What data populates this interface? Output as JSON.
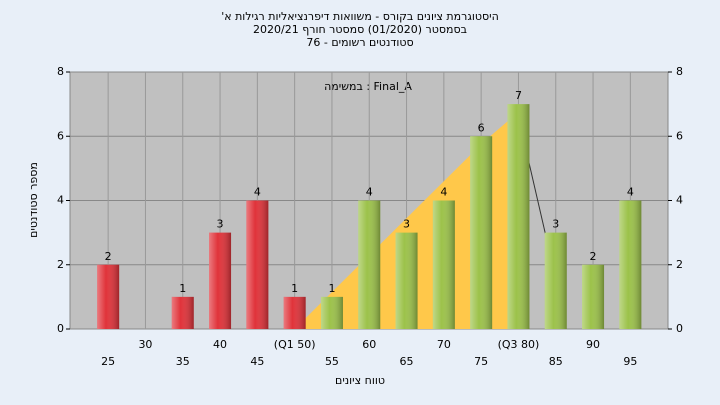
{
  "chart_data": {
    "type": "bar",
    "title": [
      "היסטוגרמת ציונים בקורס - משוואות דיפרנציאליות רגילות א'",
      "בסמסטר (01/2020) סמסטר חורף 2020/21",
      "סטודנטים רשומים - 76"
    ],
    "annotation": "במשימה : Final_A",
    "x_label": "טווח ציונים",
    "y_label": "מספר סטודנטים",
    "categories": [
      "25",
      "30",
      "35",
      "40",
      "45",
      "(Q1 50)",
      "55",
      "60",
      "65",
      "70",
      "75",
      "(Q3 80)",
      "85",
      "90",
      "95"
    ],
    "values": [
      2,
      0,
      1,
      3,
      4,
      1,
      1,
      4,
      3,
      4,
      6,
      7,
      3,
      2,
      4
    ],
    "colors": [
      "#e0333a",
      "#e0333a",
      "#e0333a",
      "#e0333a",
      "#e0333a",
      "#e0333a",
      "#9cc24a",
      "#9cc24a",
      "#9cc24a",
      "#9cc24a",
      "#9cc24a",
      "#9cc24a",
      "#9cc24a",
      "#9cc24a",
      "#9cc24a"
    ],
    "ylim": [
      0,
      8
    ],
    "yticks": [
      0,
      2,
      4,
      6,
      8
    ],
    "y2lim": [
      0,
      8
    ],
    "y2ticks": [
      0,
      2,
      4,
      6,
      8
    ],
    "grid": true
  }
}
